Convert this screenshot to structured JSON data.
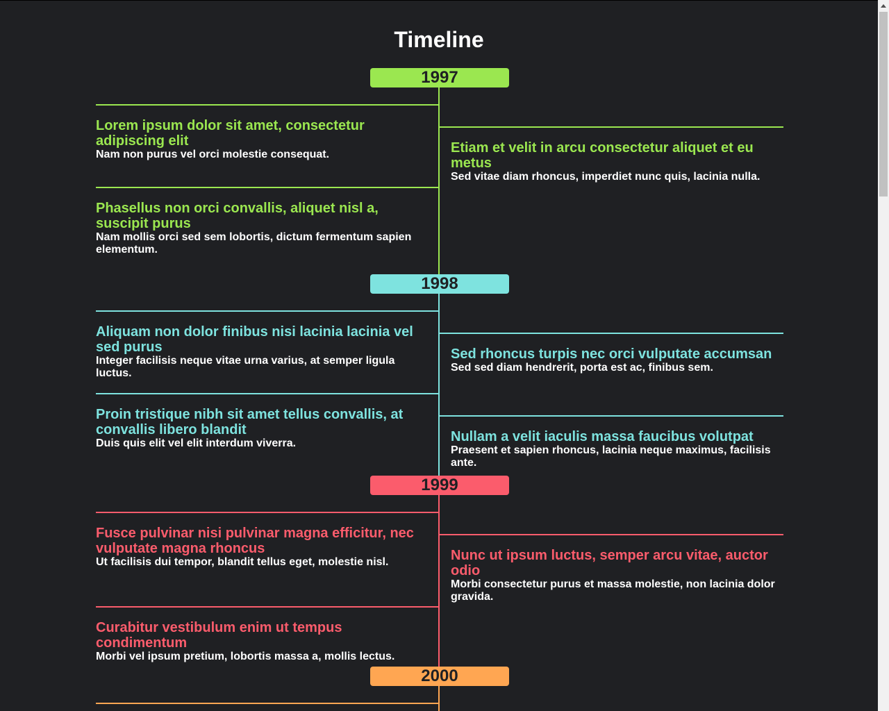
{
  "page": {
    "title": "Timeline"
  },
  "colors": {
    "1997": "#9be750",
    "1998": "#7ee3df",
    "1999": "#fb5c6c",
    "2000": "#ffa652",
    "background": "#1f2023"
  },
  "years": [
    {
      "label": "1997",
      "events": [
        {
          "side": "left",
          "title": "Lorem ipsum dolor sit amet, consectetur adipiscing elit",
          "text": "Nam non purus vel orci molestie consequat."
        },
        {
          "side": "right",
          "title": "Etiam et velit in arcu consectetur aliquet et eu metus",
          "text": "Sed vitae diam rhoncus, imperdiet nunc quis, lacinia nulla."
        },
        {
          "side": "left",
          "title": "Phasellus non orci convallis, aliquet nisl a, suscipit purus",
          "text": "Nam mollis orci sed sem lobortis, dictum fermentum sapien elementum."
        }
      ]
    },
    {
      "label": "1998",
      "events": [
        {
          "side": "left",
          "title": "Aliquam non dolor finibus nisi lacinia lacinia vel sed purus",
          "text": "Integer facilisis neque vitae urna varius, at semper ligula luctus."
        },
        {
          "side": "right",
          "title": "Sed rhoncus turpis nec orci vulputate accumsan",
          "text": "Sed sed diam hendrerit, porta est ac, finibus sem."
        },
        {
          "side": "left",
          "title": "Proin tristique nibh sit amet tellus convallis, at convallis libero blandit",
          "text": "Duis quis elit vel elit interdum viverra."
        },
        {
          "side": "right",
          "title": "Nullam a velit iaculis massa faucibus volutpat",
          "text": "Praesent et sapien rhoncus, lacinia neque maximus, facilisis ante."
        }
      ]
    },
    {
      "label": "1999",
      "events": [
        {
          "side": "left",
          "title": "Fusce pulvinar nisi pulvinar magna efficitur, nec vulputate magna rhoncus",
          "text": "Ut facilisis dui tempor, blandit tellus eget, molestie nisl."
        },
        {
          "side": "right",
          "title": "Nunc ut ipsum luctus, semper arcu vitae, auctor odio",
          "text": "Morbi consectetur purus et massa molestie, non lacinia dolor gravida."
        },
        {
          "side": "left",
          "title": "Curabitur vestibulum enim ut tempus condimentum",
          "text": "Morbi vel ipsum pretium, lobortis massa a, mollis lectus."
        }
      ]
    },
    {
      "label": "2000",
      "events": []
    }
  ]
}
